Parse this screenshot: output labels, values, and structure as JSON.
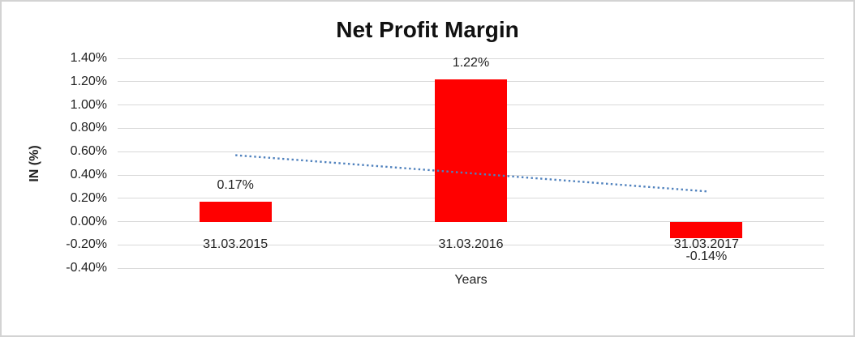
{
  "chart_data": {
    "type": "bar",
    "title": "Net Profit Margin",
    "xlabel": "Years",
    "ylabel": "IN (%)",
    "categories": [
      "31.03.2015",
      "31.03.2016",
      "31.03.2017"
    ],
    "values": [
      0.17,
      1.22,
      -0.14
    ],
    "value_labels": [
      "0.17%",
      "1.22%",
      "-0.14%"
    ],
    "ylim": [
      -0.4,
      1.4
    ],
    "ytick_step": 0.2,
    "ytick_labels": [
      "1.40%",
      "1.20%",
      "1.00%",
      "0.80%",
      "0.60%",
      "0.40%",
      "0.20%",
      "0.00%",
      "-0.20%",
      "-0.40%"
    ],
    "grid": true,
    "legend": false,
    "bar_color": "#FF0000",
    "gridline_color": "#D9D9D9",
    "text_color": "#222222",
    "trendline": {
      "type": "linear",
      "style": "dotted",
      "color": "#4F81BD",
      "start_value": 0.57,
      "end_value": 0.26
    }
  }
}
